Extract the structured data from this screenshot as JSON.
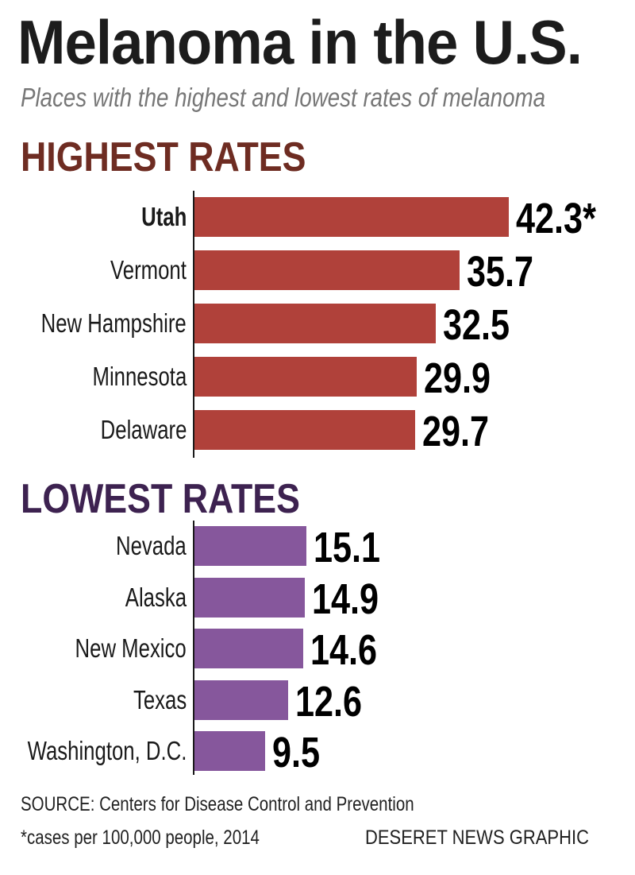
{
  "chart_data": {
    "type": "bar",
    "orientation": "horizontal",
    "title": "Melanoma in the U.S.",
    "subtitle": "Places with the highest and lowest rates of melanoma",
    "xlabel": "",
    "ylabel": "",
    "xlim": [
      0,
      42.3
    ],
    "groups": [
      {
        "name": "HIGHEST RATES",
        "header_color": "#6e2c22",
        "bar_color": "#b0413a",
        "categories": [
          "Utah",
          "Vermont",
          "New Hampshire",
          "Minnesota",
          "Delaware"
        ],
        "values": [
          42.3,
          35.7,
          32.5,
          29.9,
          29.7
        ],
        "value_labels": [
          "42.3*",
          "35.7",
          "32.5",
          "29.9",
          "29.7"
        ]
      },
      {
        "name": "LOWEST RATES",
        "header_color": "#3d2250",
        "bar_color": "#86579c",
        "categories": [
          "Nevada",
          "Alaska",
          "New Mexico",
          "Texas",
          "Washington, D.C."
        ],
        "values": [
          15.1,
          14.9,
          14.6,
          12.6,
          9.5
        ],
        "value_labels": [
          "15.1",
          "14.9",
          "14.6",
          "12.6",
          "9.5"
        ]
      }
    ]
  },
  "footer": {
    "source": "SOURCE: Centers for Disease Control and Prevention",
    "note": "*cases per 100,000 people, 2014",
    "credit": "DESERET NEWS GRAPHIC"
  }
}
